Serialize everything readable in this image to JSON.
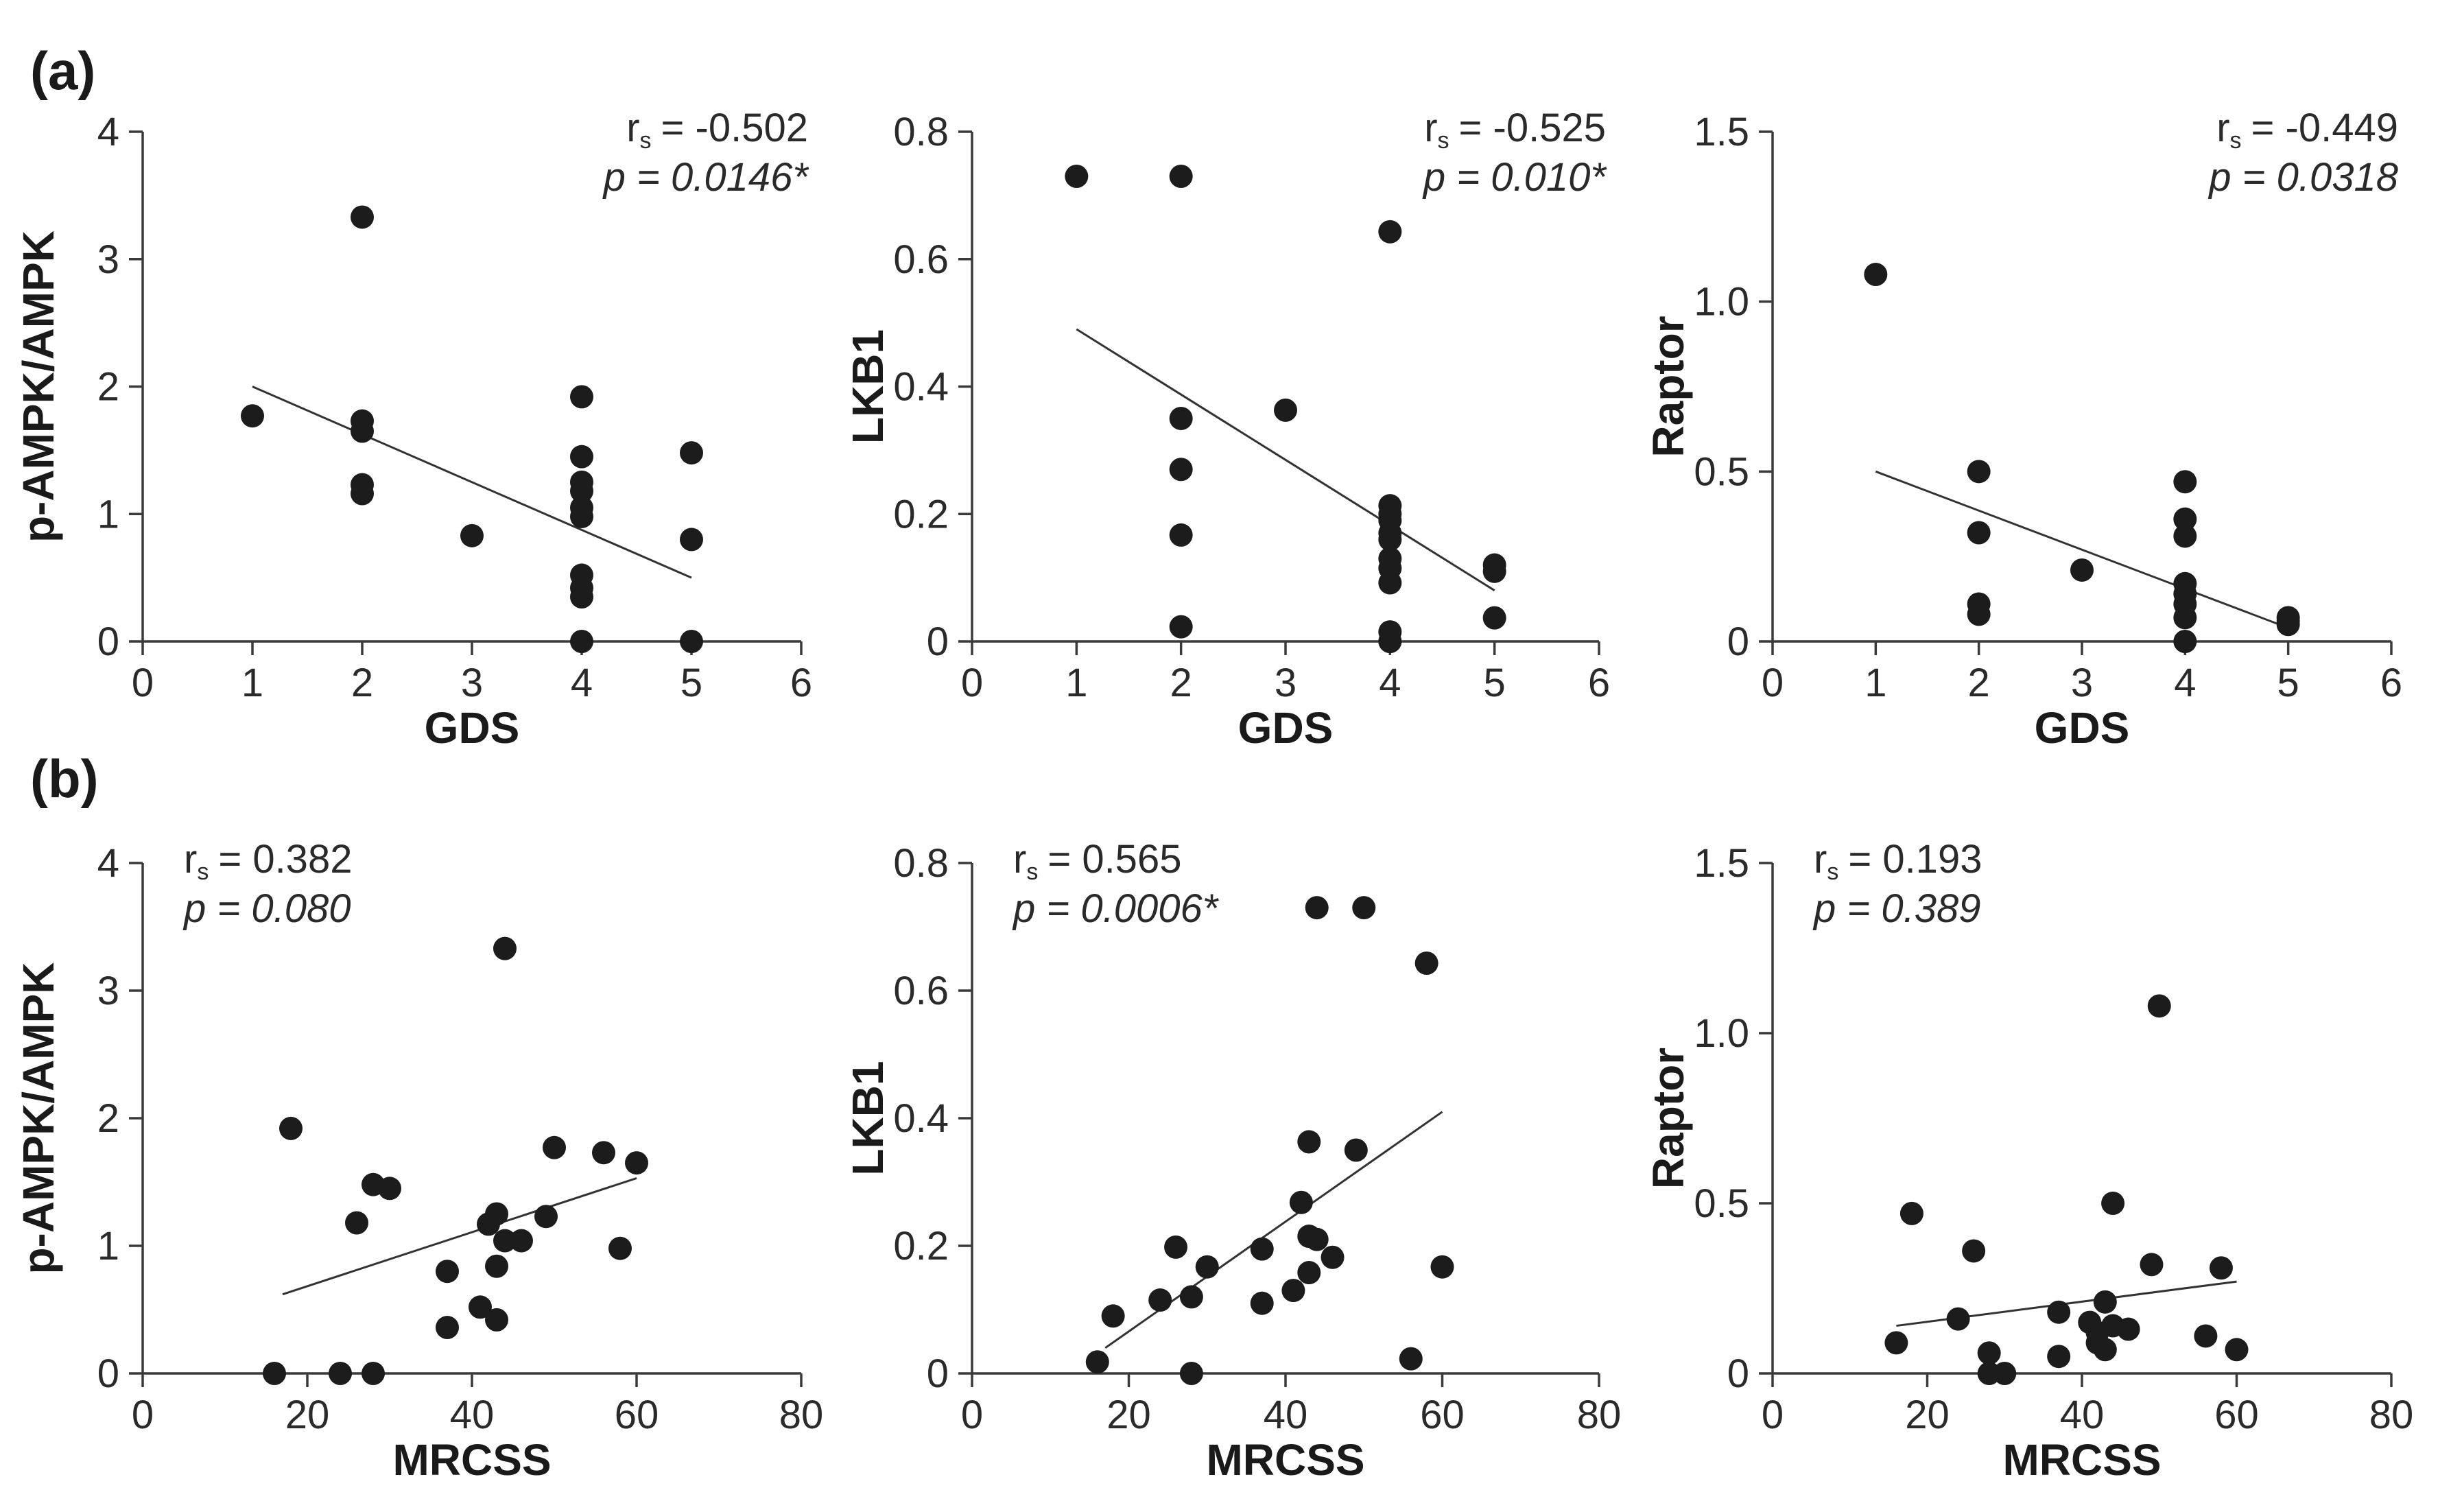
{
  "figure": {
    "row_labels": [
      "(a)",
      "(b)"
    ],
    "rs_symbol": "r",
    "rs_subscript": "s"
  },
  "chart_data": [
    {
      "type": "scatter",
      "id": "a1",
      "row": 0,
      "col": 0,
      "xlabel": "GDS",
      "ylabel": "p-AMPK/AMPK",
      "xlim": [
        0,
        6
      ],
      "ylim": [
        0,
        4
      ],
      "xticks": [
        "0",
        "1",
        "2",
        "3",
        "4",
        "5",
        "6"
      ],
      "yticks": [
        "0",
        "1",
        "2",
        "3",
        "4"
      ],
      "stat_position": "top-right",
      "rs": "= -0.502",
      "p": "p = 0.0146*",
      "fit": {
        "x": [
          1,
          5
        ],
        "y": [
          2.0,
          0.5
        ]
      },
      "points": {
        "x": [
          1,
          2,
          2,
          2,
          2,
          2,
          3,
          4,
          4,
          4,
          4,
          4,
          4,
          4,
          4,
          4,
          4,
          5,
          5,
          5
        ],
        "y": [
          1.77,
          3.33,
          1.73,
          1.65,
          1.23,
          1.16,
          0.83,
          1.92,
          1.45,
          1.25,
          1.18,
          1.05,
          0.98,
          0.52,
          0.42,
          0.35,
          0.0,
          1.48,
          0.8,
          0.0
        ]
      }
    },
    {
      "type": "scatter",
      "id": "a2",
      "row": 0,
      "col": 1,
      "xlabel": "GDS",
      "ylabel": "LKB1",
      "xlim": [
        0,
        6
      ],
      "ylim": [
        0,
        0.8
      ],
      "xticks": [
        "0",
        "1",
        "2",
        "3",
        "4",
        "5",
        "6"
      ],
      "yticks": [
        "0",
        "0.2",
        "0.4",
        "0.6",
        "0.8"
      ],
      "stat_position": "top-right",
      "rs": "= -0.525",
      "p": "p = 0.010*",
      "fit": {
        "x": [
          1,
          5
        ],
        "y": [
          0.49,
          0.08
        ]
      },
      "points": {
        "x": [
          1,
          2,
          2,
          2,
          2,
          2,
          3,
          4,
          4,
          4,
          4,
          4,
          4,
          4,
          4,
          4,
          4,
          4,
          4,
          5,
          5,
          5
        ],
        "y": [
          0.73,
          0.73,
          0.35,
          0.27,
          0.167,
          0.023,
          0.363,
          0.643,
          0.213,
          0.2,
          0.19,
          0.17,
          0.16,
          0.13,
          0.115,
          0.092,
          0.015,
          0.0,
          0.0,
          0.12,
          0.11,
          0.037
        ]
      }
    },
    {
      "type": "scatter",
      "id": "a3",
      "row": 0,
      "col": 2,
      "xlabel": "GDS",
      "ylabel": "Raptor",
      "xlim": [
        0,
        6
      ],
      "ylim": [
        0,
        1.5
      ],
      "xticks": [
        "0",
        "1",
        "2",
        "3",
        "4",
        "5",
        "6"
      ],
      "yticks": [
        "0",
        "0.5",
        "1.0",
        "1.5"
      ],
      "stat_position": "top-right",
      "rs": "= -0.449",
      "p": "p = 0.0318",
      "fit": {
        "x": [
          1,
          5
        ],
        "y": [
          0.5,
          0.04
        ]
      },
      "points": {
        "x": [
          1,
          2,
          2,
          2,
          2,
          3,
          4,
          4,
          4,
          4,
          4,
          4,
          4,
          4,
          5,
          5,
          5
        ],
        "y": [
          1.08,
          0.5,
          0.32,
          0.11,
          0.08,
          0.21,
          0.47,
          0.36,
          0.31,
          0.17,
          0.14,
          0.11,
          0.07,
          0.0,
          0.07,
          0.06,
          0.05
        ]
      }
    },
    {
      "type": "scatter",
      "id": "b1",
      "row": 1,
      "col": 0,
      "xlabel": "MRCSS",
      "ylabel": "p-AMPK/AMPK",
      "xlim": [
        0,
        80
      ],
      "ylim": [
        0,
        4
      ],
      "xticks": [
        "0",
        "20",
        "40",
        "60",
        "80"
      ],
      "yticks": [
        "0",
        "1",
        "2",
        "3",
        "4"
      ],
      "stat_position": "top-left",
      "rs": "= 0.382",
      "p": "p = 0.080",
      "fit": {
        "x": [
          17,
          60
        ],
        "y": [
          0.62,
          1.53
        ]
      },
      "points": {
        "x": [
          16,
          18,
          24,
          26,
          28,
          28,
          30,
          37,
          37,
          41,
          42,
          43,
          43,
          43,
          44,
          46,
          49,
          50,
          56,
          58,
          60,
          44
        ],
        "y": [
          0.0,
          1.92,
          0.0,
          1.18,
          1.48,
          0.0,
          1.45,
          0.8,
          0.36,
          0.52,
          1.17,
          1.25,
          0.84,
          0.42,
          1.04,
          1.04,
          1.23,
          1.77,
          1.73,
          0.98,
          1.65,
          3.33
        ]
      }
    },
    {
      "type": "scatter",
      "id": "b2",
      "row": 1,
      "col": 1,
      "xlabel": "MRCSS",
      "ylabel": "LKB1",
      "xlim": [
        0,
        80
      ],
      "ylim": [
        0,
        0.8
      ],
      "xticks": [
        "0",
        "20",
        "40",
        "60",
        "80"
      ],
      "yticks": [
        "0",
        "0.2",
        "0.4",
        "0.6",
        "0.8"
      ],
      "stat_position": "top-left",
      "rs": "= 0.565",
      "p": "p = 0.0006*",
      "fit": {
        "x": [
          17,
          60
        ],
        "y": [
          0.04,
          0.41
        ]
      },
      "points": {
        "x": [
          16,
          18,
          24,
          26,
          28,
          28,
          30,
          37,
          37,
          41,
          42,
          43,
          43,
          44,
          46,
          49,
          43,
          44,
          50,
          58,
          56,
          60
        ],
        "y": [
          0.018,
          0.09,
          0.115,
          0.198,
          0.12,
          0.0,
          0.167,
          0.195,
          0.11,
          0.13,
          0.268,
          0.363,
          0.158,
          0.21,
          0.182,
          0.35,
          0.215,
          0.73,
          0.73,
          0.643,
          0.023,
          0.167
        ]
      }
    },
    {
      "type": "scatter",
      "id": "b3",
      "row": 1,
      "col": 2,
      "xlabel": "MRCSS",
      "ylabel": "Raptor",
      "xlim": [
        0,
        80
      ],
      "ylim": [
        0,
        1.5
      ],
      "xticks": [
        "0",
        "20",
        "40",
        "60",
        "80"
      ],
      "yticks": [
        "0",
        "0.5",
        "1.0",
        "1.5"
      ],
      "stat_position": "top-left",
      "rs": "= 0.193",
      "p": "p = 0.389",
      "fit": {
        "x": [
          16,
          60
        ],
        "y": [
          0.14,
          0.27
        ]
      },
      "points": {
        "x": [
          16,
          18,
          24,
          26,
          28,
          28,
          30,
          37,
          37,
          41,
          42,
          42,
          43,
          43,
          44,
          44,
          46,
          49,
          50,
          56,
          58,
          60
        ],
        "y": [
          0.09,
          0.47,
          0.16,
          0.36,
          0.06,
          0.0,
          0.0,
          0.18,
          0.05,
          0.15,
          0.12,
          0.09,
          0.07,
          0.21,
          0.14,
          0.5,
          0.13,
          0.32,
          1.08,
          0.11,
          0.31,
          0.07
        ]
      }
    }
  ]
}
